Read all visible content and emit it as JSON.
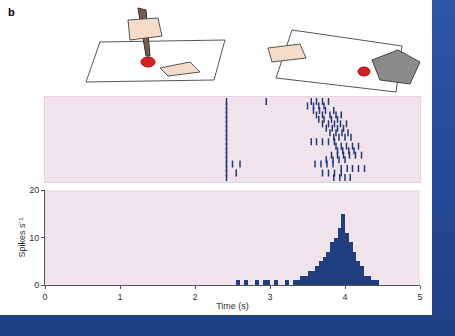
{
  "chart_data": [
    {
      "type": "scatter",
      "title": "b",
      "marker": "line-ns",
      "color": "#1e3a78",
      "xlim": [
        0,
        5
      ],
      "ylim": [
        0,
        19
      ],
      "tick_labels": false,
      "grid": false,
      "x": [
        2.42,
        2.42,
        2.42,
        2.42,
        2.42,
        2.42,
        2.42,
        2.42,
        2.42,
        2.42,
        2.42,
        2.42,
        2.42,
        2.42,
        2.42,
        2.42,
        2.42,
        2.42,
        2.95,
        3.55,
        3.62,
        3.7,
        3.78,
        3.5,
        3.58,
        3.65,
        3.72,
        3.58,
        3.66,
        3.74,
        3.85,
        3.62,
        3.7,
        3.8,
        3.88,
        3.95,
        3.65,
        3.72,
        3.82,
        3.9,
        3.7,
        3.78,
        3.86,
        3.94,
        4.02,
        3.75,
        3.83,
        3.9,
        3.98,
        3.8,
        3.88,
        3.96,
        4.04,
        3.85,
        3.92,
        4.0,
        4.08,
        3.55,
        3.62,
        3.7,
        3.78,
        3.86,
        3.88,
        3.95,
        4.02,
        4.1,
        4.18,
        3.9,
        3.97,
        4.05,
        4.12,
        3.82,
        3.9,
        3.98,
        4.06,
        4.14,
        4.22,
        3.75,
        3.84,
        3.92,
        4.0,
        2.5,
        2.6,
        3.6,
        3.68,
        3.76,
        3.84,
        3.95,
        4.03,
        4.1,
        4.18,
        4.26,
        2.55,
        3.7,
        3.78,
        3.86,
        3.95,
        3.85,
        3.93,
        4.0,
        4.07
      ],
      "values": [
        1,
        2,
        3,
        4,
        5,
        6,
        7,
        8,
        9,
        10,
        11,
        12,
        13,
        14,
        15,
        16,
        17,
        18,
        18,
        18,
        18,
        18,
        18,
        17,
        17,
        17,
        17,
        16,
        16,
        16,
        16,
        15,
        15,
        15,
        15,
        15,
        14,
        14,
        14,
        14,
        13,
        13,
        13,
        13,
        13,
        12,
        12,
        12,
        12,
        11,
        11,
        11,
        11,
        10,
        10,
        10,
        10,
        9,
        9,
        9,
        9,
        9,
        8,
        8,
        8,
        8,
        8,
        7,
        7,
        7,
        7,
        6,
        6,
        6,
        6,
        6,
        6,
        5,
        5,
        5,
        5,
        4,
        4,
        4,
        4,
        4,
        4,
        3,
        3,
        3,
        3,
        3,
        2,
        2,
        2,
        2,
        2,
        1,
        1,
        1,
        1
      ]
    },
    {
      "type": "histogram",
      "color": "#1f3f7f",
      "x_label": "Time (s)",
      "y_label": "Spikes s⁻¹",
      "xlim": [
        0,
        5
      ],
      "xticks": [
        0,
        1,
        2,
        3,
        4,
        5
      ],
      "ylim": [
        0,
        20
      ],
      "yticks": [
        0,
        10,
        20
      ],
      "grid": false,
      "bins": [
        2.5,
        2.55,
        2.6,
        2.65,
        2.7,
        2.75,
        2.8,
        2.85,
        2.9,
        2.95,
        3.0,
        3.05,
        3.1,
        3.15,
        3.2,
        3.25,
        3.3,
        3.35,
        3.4,
        3.45,
        3.5,
        3.55,
        3.6,
        3.65,
        3.7,
        3.75,
        3.8,
        3.85,
        3.9,
        3.95,
        4.0,
        4.05,
        4.1,
        4.15,
        4.2,
        4.25,
        4.3,
        4.35,
        4.4,
        4.45,
        4.5
      ],
      "values": [
        0,
        1,
        0,
        1,
        0,
        0,
        1,
        0,
        1,
        1,
        0,
        1,
        0,
        0,
        1,
        0,
        1,
        1,
        2,
        2,
        3,
        3,
        4,
        5,
        6,
        7,
        9,
        10,
        12,
        15,
        11,
        9,
        7,
        5,
        4,
        2,
        2,
        1,
        1,
        0
      ]
    }
  ]
}
